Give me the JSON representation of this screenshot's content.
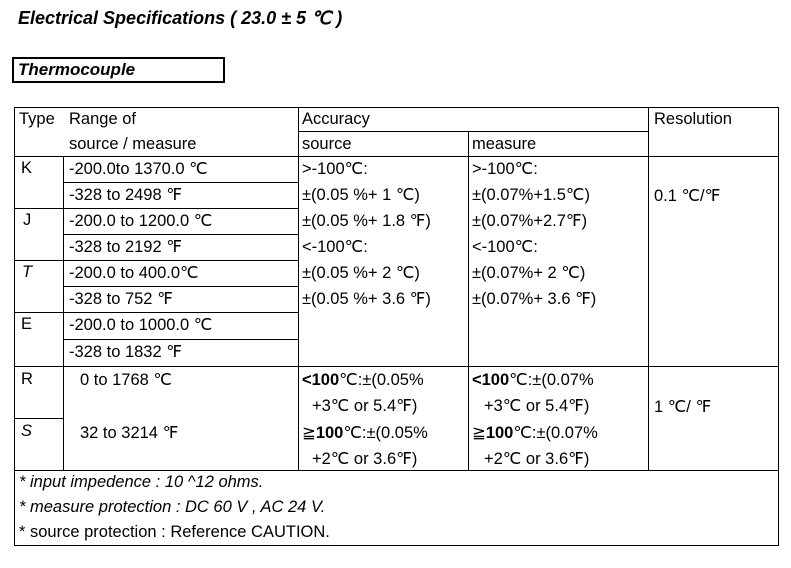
{
  "title": "Electrical Specifications ( 23.0  ± 5 ℃ )",
  "section": "Thermocouple",
  "headers": {
    "type": "Type",
    "range1": "Range of",
    "range2": "source / measure",
    "accuracy": "Accuracy",
    "source": "source",
    "measure": "measure",
    "resolution": "Resolution"
  },
  "types": [
    "K",
    "J",
    "T",
    "E",
    "R",
    "S"
  ],
  "ranges": [
    "-200.0to 1370.0 ℃",
    "-328 to 2498 ℉",
    "-200.0 to 1200.0 ℃",
    "-328 to 2192 ℉",
    "-200.0 to 400.0℃",
    "-328 to 752 ℉",
    "-200.0 to 1000.0 ℃",
    "-328 to 1832 ℉"
  ],
  "source_lines": [
    ">-100℃:",
    "±(0.05 %+ 1 ℃)",
    "±(0.05 %+ 1.8 ℉)",
    "<-100℃:",
    "±(0.05 %+ 2 ℃)",
    "±(0.05 %+ 3.6 ℉)"
  ],
  "measure_lines": [
    ">-100℃:",
    "±(0.07%+1.5℃)",
    "±(0.07%+2.7℉)",
    "<-100℃:",
    "±(0.07%+ 2 ℃)",
    "±(0.07%+ 3.6 ℉)"
  ],
  "resolution1": "0.1  ℃/℉",
  "rs": {
    "range_r": "0 to 1768 ℃",
    "range_s": "32 to 3214 ℉",
    "src_a_bold": "<100",
    "src_a": "℃:±(0.05%",
    "src_b": "+3℃ or 5.4℉)",
    "src_c_sym": "≧",
    "src_c_bold": "100",
    "src_c": "℃:±(0.05%",
    "src_d": "+2℃ or 3.6℉)",
    "mea_a_bold": "<100",
    "mea_a": "℃:±(0.07%",
    "mea_b": "+3℃ or 5.4℉)",
    "mea_c_sym": "≧",
    "mea_c_bold": "100",
    "mea_c": "℃:±(0.07%",
    "mea_d": "+2℃ or 3.6℉)",
    "resolution": "1  ℃/ ℉"
  },
  "notes": [
    "* input impedence  : 10 ^12  ohms.",
    "* measure protection : DC 60 V , AC 24 V.",
    "* source protection : Reference CAUTION."
  ]
}
